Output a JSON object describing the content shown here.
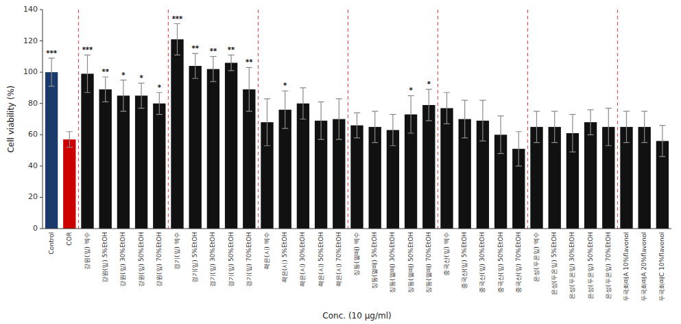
{
  "chart_data": {
    "type": "bar",
    "xlabel": "Conc. (10 μg/ml)",
    "ylabel": "Cell viability (%)",
    "categories": [
      "Control",
      "COR",
      "강원(잎) 엑수",
      "강원(잎) 5%EtOH",
      "강원(잎) 30%EtOH",
      "강원(잎) 50%EtOH",
      "강원(잎) 70%EtOH",
      "경기(잎) 엑수",
      "경기(잎) 5%EtOH",
      "경기(잎) 30%EtOH",
      "경기(잎) 50%EtOH",
      "경기(잎) 70%EtOH",
      "좍은(시) 엑수",
      "좍은(시) 5%EtOH",
      "좍은(시) 30%EtOH",
      "좍은(시) 50%EtOH",
      "좍은(시) 70%EtOH",
      "징동(열매) 엑수",
      "징동(열매) 5%EtOH",
      "징동(열매) 30%EtOH",
      "징동(열매) 50%EtOH",
      "징동(열매) 70%EtOH",
      "중국산(잎) 엑수",
      "중국산(잎) 5%EtOH",
      "중국산(잎) 30%EtOH",
      "중국산(잎) 50%EtOH",
      "중국산(잎) 70%EtOH",
      "은성(두온잎) 엑수",
      "은성(두온잎) 5%EtOH",
      "은성(두온잎) 30%EtOH",
      "은성(두온잎) 50%EtOH",
      "은성(두온잎) 70%EtOH",
      "두국화매A 10%flavonol",
      "두국화매A 20%flavonol",
      "두국화매C 10%flavonol"
    ],
    "values": [
      100,
      57,
      99,
      89,
      85,
      85,
      80,
      121,
      104,
      102,
      106,
      89,
      68,
      76,
      80,
      69,
      70,
      66,
      65,
      63,
      73,
      79,
      77,
      70,
      69,
      60,
      51,
      65,
      65,
      61,
      68,
      65,
      65,
      65,
      56
    ],
    "errors": [
      9,
      5,
      12,
      8,
      10,
      8,
      7,
      10,
      8,
      8,
      5,
      14,
      15,
      12,
      10,
      12,
      13,
      8,
      10,
      10,
      12,
      10,
      10,
      12,
      13,
      12,
      11,
      10,
      10,
      12,
      8,
      12,
      10,
      10,
      10
    ],
    "colors": [
      "#1a3a6b",
      "#cc0000",
      "#111111",
      "#111111",
      "#111111",
      "#111111",
      "#111111",
      "#111111",
      "#111111",
      "#111111",
      "#111111",
      "#111111",
      "#111111",
      "#111111",
      "#111111",
      "#111111",
      "#111111",
      "#111111",
      "#111111",
      "#111111",
      "#111111",
      "#111111",
      "#111111",
      "#111111",
      "#111111",
      "#111111",
      "#111111",
      "#111111",
      "#111111",
      "#111111",
      "#111111",
      "#111111",
      "#111111",
      "#111111",
      "#111111"
    ],
    "significance": [
      "***",
      null,
      "***",
      "**",
      "*",
      "*",
      "*",
      "***",
      "**",
      "**",
      "**",
      "**",
      null,
      "*",
      null,
      null,
      null,
      null,
      null,
      null,
      "*",
      "*",
      null,
      null,
      null,
      null,
      null,
      null,
      null,
      null,
      null,
      null,
      null,
      null,
      null
    ],
    "group_starts": [
      2,
      7,
      12,
      17,
      22,
      27,
      32
    ],
    "ylim": [
      0,
      140
    ],
    "yticks": [
      0,
      20,
      40,
      60,
      80,
      100,
      120,
      140
    ],
    "grid": false
  }
}
